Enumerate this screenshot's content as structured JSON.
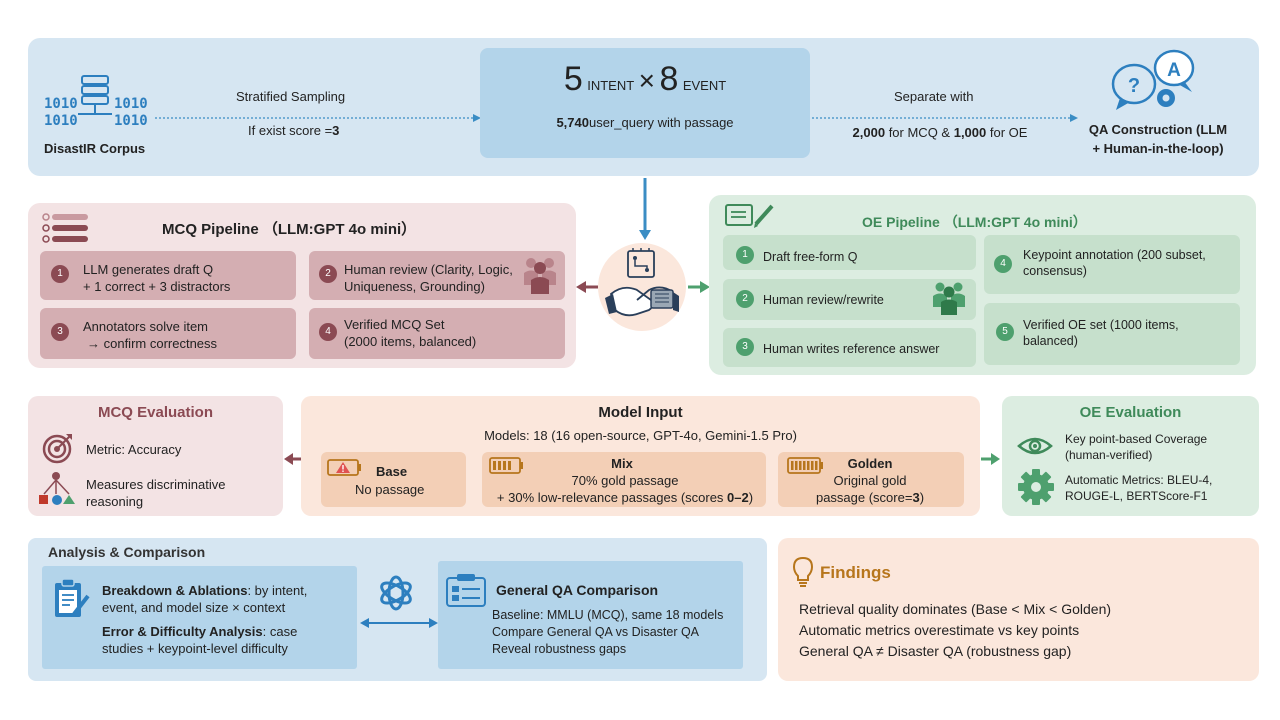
{
  "top": {
    "corpus_label": "DisastIR Corpus",
    "sampling_label": "Stratified Sampling",
    "score_prefix": "If exist score =",
    "score_value": "3",
    "intent_num": "5",
    "intent_word": "INTENT",
    "times": "×",
    "event_num": "8",
    "event_word": "EVENT",
    "query_count": "5,740",
    "query_text": "user_query with passage",
    "separate_label": "Separate with",
    "mcq_count": "2,000",
    "mcq_text": "for MCQ &",
    "oe_count": "1,000",
    "oe_text": "for OE",
    "qa_line1": "QA Construction (LLM",
    "qa_line2": "+ Human-in-the-loop)"
  },
  "mcq_pipeline": {
    "title": "MCQ Pipeline （LLM:GPT 4o mini）",
    "steps": [
      {
        "num": "1",
        "line1": "LLM generates draft Q",
        "line2": "+ 1 correct + 3 distractors"
      },
      {
        "num": "2",
        "line1": "Human review (Clarity, Logic,",
        "line2": "Uniqueness, Grounding)"
      },
      {
        "num": "3",
        "line1": "Annotators solve item",
        "line2": "→ confirm correctness"
      },
      {
        "num": "4",
        "line1": "Verified MCQ Set",
        "line2": "(2000 items, balanced)"
      }
    ]
  },
  "oe_pipeline": {
    "title": "OE Pipeline （LLM:GPT 4o mini）",
    "steps": [
      {
        "num": "1",
        "line1": "Draft free-form Q",
        "line2": ""
      },
      {
        "num": "2",
        "line1": "Human review/rewrite",
        "line2": ""
      },
      {
        "num": "3",
        "line1": "Human writes reference  answer",
        "line2": ""
      },
      {
        "num": "4",
        "line1": "Keypoint annotation (200 subset,",
        "line2": "consensus)"
      },
      {
        "num": "5",
        "line1": "Verified OE set (1000 items,",
        "line2": "balanced)"
      }
    ]
  },
  "mcq_eval": {
    "title": "MCQ Evaluation",
    "metric": "Metric: Accuracy",
    "measure_line1": "Measures discriminative",
    "measure_line2": "reasoning"
  },
  "model_input": {
    "title": "Model Input",
    "models": "Models: 18 (16 open-source, GPT-4o, Gemini-1.5 Pro)",
    "base_title": "Base",
    "base_desc": "No passage",
    "mix_title": "Mix",
    "mix_line1": "70% gold passage",
    "mix_line2_pre": "+ 30% low-relevance passages (scores ",
    "mix_line2_val": "0–2",
    "mix_line2_post": ")",
    "golden_title": "Golden",
    "golden_line1": "Original gold",
    "golden_line2_pre": "passage (score=",
    "golden_line2_val": "3",
    "golden_line2_post": ")"
  },
  "oe_eval": {
    "title": "OE Evaluation",
    "kp_line1": "Key point-based Coverage",
    "kp_line2": "(human-verified)",
    "auto_line1": "Automatic Metrics: BLEU-4,",
    "auto_line2": "ROUGE-L, BERTScore-F1"
  },
  "analysis": {
    "title": "Analysis  & Comparison",
    "breakdown_bold": "Breakdown & Ablations",
    "breakdown_rest1": ": by intent,",
    "breakdown_line2": "event, and model size × context",
    "error_bold": "Error & Difficulty Analysis",
    "error_rest1": ": case",
    "error_line2": "studies + keypoint-level difficulty",
    "general_title": "General QA Comparison",
    "general_lines": [
      "Baseline: MMLU (MCQ), same 18 models",
      "Compare General QA vs Disaster QA",
      "Reveal robustness gaps"
    ]
  },
  "findings": {
    "title": "Findings",
    "lines": [
      "Retrieval quality dominates (Base < Mix < Golden)",
      "Automatic metrics overestimate vs key points",
      "General QA ≠ Disaster QA (robustness gap)"
    ]
  },
  "icons": {
    "binary_text": "1010",
    "qa_question": "?",
    "qa_answer": "A"
  },
  "colors": {
    "top_bg": "#d6e6f2",
    "center_box": "#b3d4ea",
    "mcq_bg": "#f3e3e4",
    "mcq_step": "#d4aeb2",
    "mcq_accent": "#8b4a53",
    "oe_bg": "#dcede1",
    "oe_step": "#c6e0cc",
    "oe_accent": "#3f8a5a",
    "input_bg": "#fbe7dc",
    "input_box": "#f3cfb6",
    "analysis_bg": "#d6e6f2",
    "analysis_box": "#b3d4ea",
    "findings_bg": "#fbe7dc",
    "findings_title": "#b7761c",
    "blue_icon": "#2d7fbf",
    "arrow_blue": "#3b8dc4",
    "arrow_red": "#8b4a53",
    "arrow_green": "#4ea06e"
  }
}
